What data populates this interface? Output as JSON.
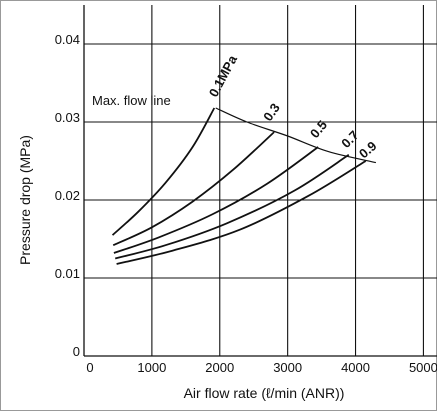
{
  "chart_data": {
    "type": "line",
    "title": "",
    "xlabel": "Air flow rate (ℓ/min (ANR))",
    "ylabel": "Pressure drop (MPa)",
    "xlim": [
      0,
      5200
    ],
    "ylim": [
      0,
      0.045
    ],
    "x_ticks": [
      0,
      1000,
      2000,
      3000,
      4000,
      5000
    ],
    "x_tick_labels": [
      "0",
      "1000",
      "2000",
      "3000",
      "4000",
      "5000"
    ],
    "y_ticks": [
      0,
      0.01,
      0.02,
      0.03,
      0.04
    ],
    "y_tick_labels": [
      "0",
      "0.01",
      "0.02",
      "0.03",
      "0.04"
    ],
    "grid": true,
    "series": [
      {
        "name": "0.1MPa",
        "x": [
          420,
          800,
          1200,
          1600,
          1920
        ],
        "y": [
          0.0155,
          0.0185,
          0.0222,
          0.0268,
          0.0318
        ]
      },
      {
        "name": "0.3",
        "x": [
          430,
          1000,
          1600,
          2200,
          2800
        ],
        "y": [
          0.0142,
          0.0165,
          0.0198,
          0.0239,
          0.0287
        ]
      },
      {
        "name": "0.5",
        "x": [
          440,
          1100,
          1900,
          2700,
          3450
        ],
        "y": [
          0.0132,
          0.0152,
          0.0182,
          0.0221,
          0.0268
        ]
      },
      {
        "name": "0.7",
        "x": [
          460,
          1200,
          2100,
          3100,
          3900
        ],
        "y": [
          0.0125,
          0.0142,
          0.017,
          0.0212,
          0.0258
        ]
      },
      {
        "name": "0.9",
        "x": [
          480,
          1300,
          2300,
          3300,
          4150
        ],
        "y": [
          0.0118,
          0.0135,
          0.0162,
          0.0205,
          0.025
        ]
      }
    ],
    "max_flow_line": {
      "label": "Max. flow line",
      "x": [
        1940,
        2400,
        3000,
        3600,
        4300
      ],
      "y": [
        0.0318,
        0.03,
        0.0282,
        0.0262,
        0.0248
      ]
    },
    "colors": {
      "line": "#111111",
      "grid": "#111111",
      "background": "#ffffff",
      "frame": "#999999"
    }
  }
}
